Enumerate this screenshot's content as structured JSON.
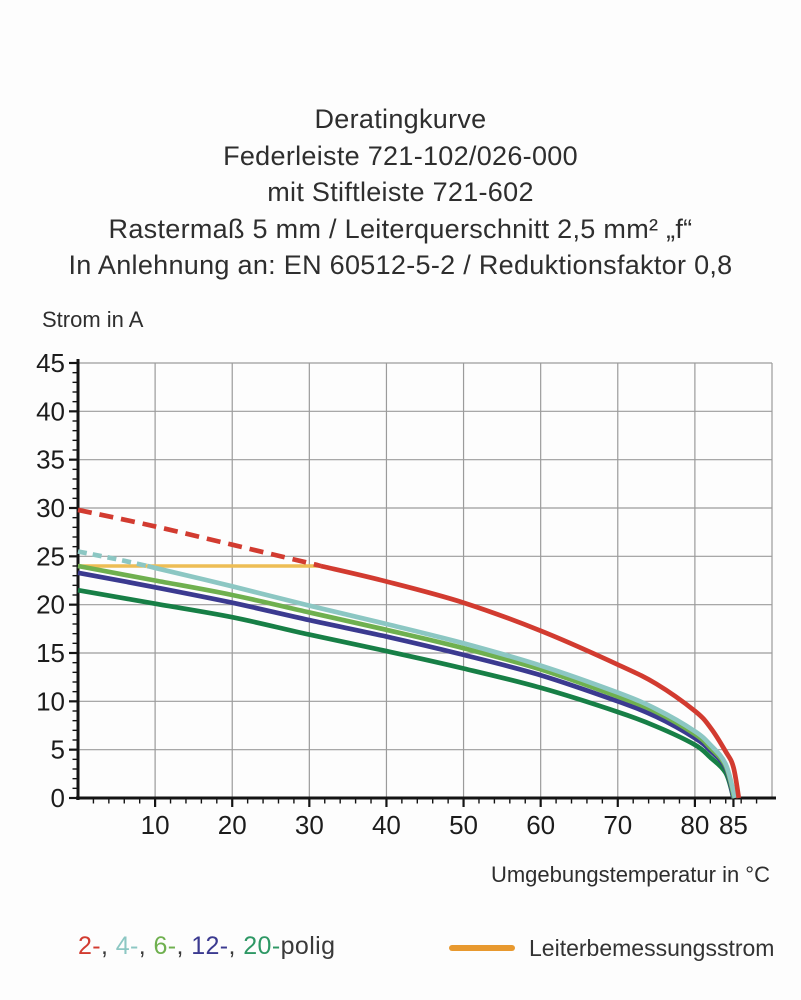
{
  "title": {
    "lines": [
      "Deratingkurve",
      "Federleiste 721-102/026-000",
      "mit Stiftleiste 721-602",
      "Rastermaß 5 mm / Leiterquerschnitt 2,5 mm² „f“",
      "In Anlehnung an: EN 60512-5-2 / Reduktionsfaktor 0,8"
    ]
  },
  "chart_data": {
    "type": "line",
    "title": "Deratingkurve",
    "xlabel": "Umgebungstemperatur in °C",
    "ylabel": "Strom in A",
    "xlim": [
      0,
      90
    ],
    "ylim": [
      0,
      45
    ],
    "x_major_ticks": [
      10,
      20,
      30,
      40,
      50,
      60,
      70,
      80,
      85
    ],
    "y_major_ticks": [
      0,
      5,
      10,
      15,
      20,
      25,
      30,
      35,
      40,
      45
    ],
    "x_minor_step": 2,
    "y_minor_step": 1,
    "grid": {
      "on": true,
      "x_step": 10,
      "y_step": 5,
      "color": "#9b9b9b"
    },
    "axis_color": "#141414",
    "tick_label_color": "#1c1c1c",
    "rated_line": {
      "name": "Leiterbemessungsstrom",
      "y": 24,
      "x_start": 0,
      "x_end": 31.5,
      "color": "#edbd55"
    },
    "series": [
      {
        "name": "20-polig",
        "color": "#177f46",
        "dash": null,
        "dash_split": null,
        "points": [
          [
            0,
            21.5
          ],
          [
            10,
            20.1
          ],
          [
            20,
            18.7
          ],
          [
            30,
            16.9
          ],
          [
            40,
            15.2
          ],
          [
            50,
            13.4
          ],
          [
            60,
            11.4
          ],
          [
            70,
            8.9
          ],
          [
            75,
            7.4
          ],
          [
            80,
            5.5
          ],
          [
            82,
            4.2
          ],
          [
            84,
            2.6
          ],
          [
            85,
            0
          ]
        ]
      },
      {
        "name": "12-polig",
        "color": "#3b3a90",
        "dash": null,
        "dash_split": null,
        "points": [
          [
            0,
            23.3
          ],
          [
            10,
            21.8
          ],
          [
            20,
            20.2
          ],
          [
            30,
            18.4
          ],
          [
            40,
            16.7
          ],
          [
            50,
            14.8
          ],
          [
            60,
            12.7
          ],
          [
            70,
            10.0
          ],
          [
            75,
            8.4
          ],
          [
            80,
            6.2
          ],
          [
            82,
            4.9
          ],
          [
            84,
            3.1
          ],
          [
            85,
            0
          ]
        ]
      },
      {
        "name": "6-polig",
        "color": "#6fb04f",
        "dash": null,
        "dash_split": null,
        "points": [
          [
            0,
            24.0
          ],
          [
            10,
            22.5
          ],
          [
            20,
            21.0
          ],
          [
            30,
            19.2
          ],
          [
            40,
            17.4
          ],
          [
            50,
            15.5
          ],
          [
            60,
            13.3
          ],
          [
            70,
            10.5
          ],
          [
            75,
            8.9
          ],
          [
            80,
            6.6
          ],
          [
            82,
            5.2
          ],
          [
            84,
            3.3
          ],
          [
            85.1,
            0
          ]
        ]
      },
      {
        "name": "4-polig",
        "color": "#8cc7c3",
        "dash": "9 6",
        "dash_split": 9,
        "points": [
          [
            0,
            25.5
          ],
          [
            5,
            24.7
          ],
          [
            9,
            24.0
          ],
          [
            10,
            23.8
          ],
          [
            20,
            21.9
          ],
          [
            30,
            19.9
          ],
          [
            40,
            18.0
          ],
          [
            50,
            16.0
          ],
          [
            60,
            13.7
          ],
          [
            70,
            10.9
          ],
          [
            75,
            9.2
          ],
          [
            80,
            6.9
          ],
          [
            82,
            5.5
          ],
          [
            84,
            3.5
          ],
          [
            85.2,
            0
          ]
        ]
      },
      {
        "name": "2-polig",
        "color": "#d23b30",
        "dash": "14 8",
        "dash_split": 31.5,
        "points": [
          [
            0,
            29.8
          ],
          [
            10,
            28.1
          ],
          [
            20,
            26.2
          ],
          [
            30,
            24.3
          ],
          [
            31.5,
            24.0
          ],
          [
            40,
            22.4
          ],
          [
            50,
            20.2
          ],
          [
            60,
            17.3
          ],
          [
            70,
            13.8
          ],
          [
            75,
            11.8
          ],
          [
            80,
            9.0
          ],
          [
            82,
            7.3
          ],
          [
            84,
            4.8
          ],
          [
            85,
            3.2
          ],
          [
            85.7,
            0
          ]
        ]
      }
    ]
  },
  "legend": {
    "poles": {
      "items": [
        {
          "label": "2-",
          "color": "#d23b30"
        },
        {
          "label": "4-",
          "color": "#8cc7c3"
        },
        {
          "label": "6-",
          "color": "#6fb04f"
        },
        {
          "label": "12-",
          "color": "#3b3a90"
        },
        {
          "label": "20-",
          "color": "#2e9865"
        }
      ],
      "separator": ", ",
      "separator_color": "#3a3a3a",
      "suffix": "polig",
      "suffix_color": "#3a3a3a"
    },
    "rated": {
      "label": "Leiterbemessungsstrom",
      "swatch_color": "#e8992f"
    }
  }
}
